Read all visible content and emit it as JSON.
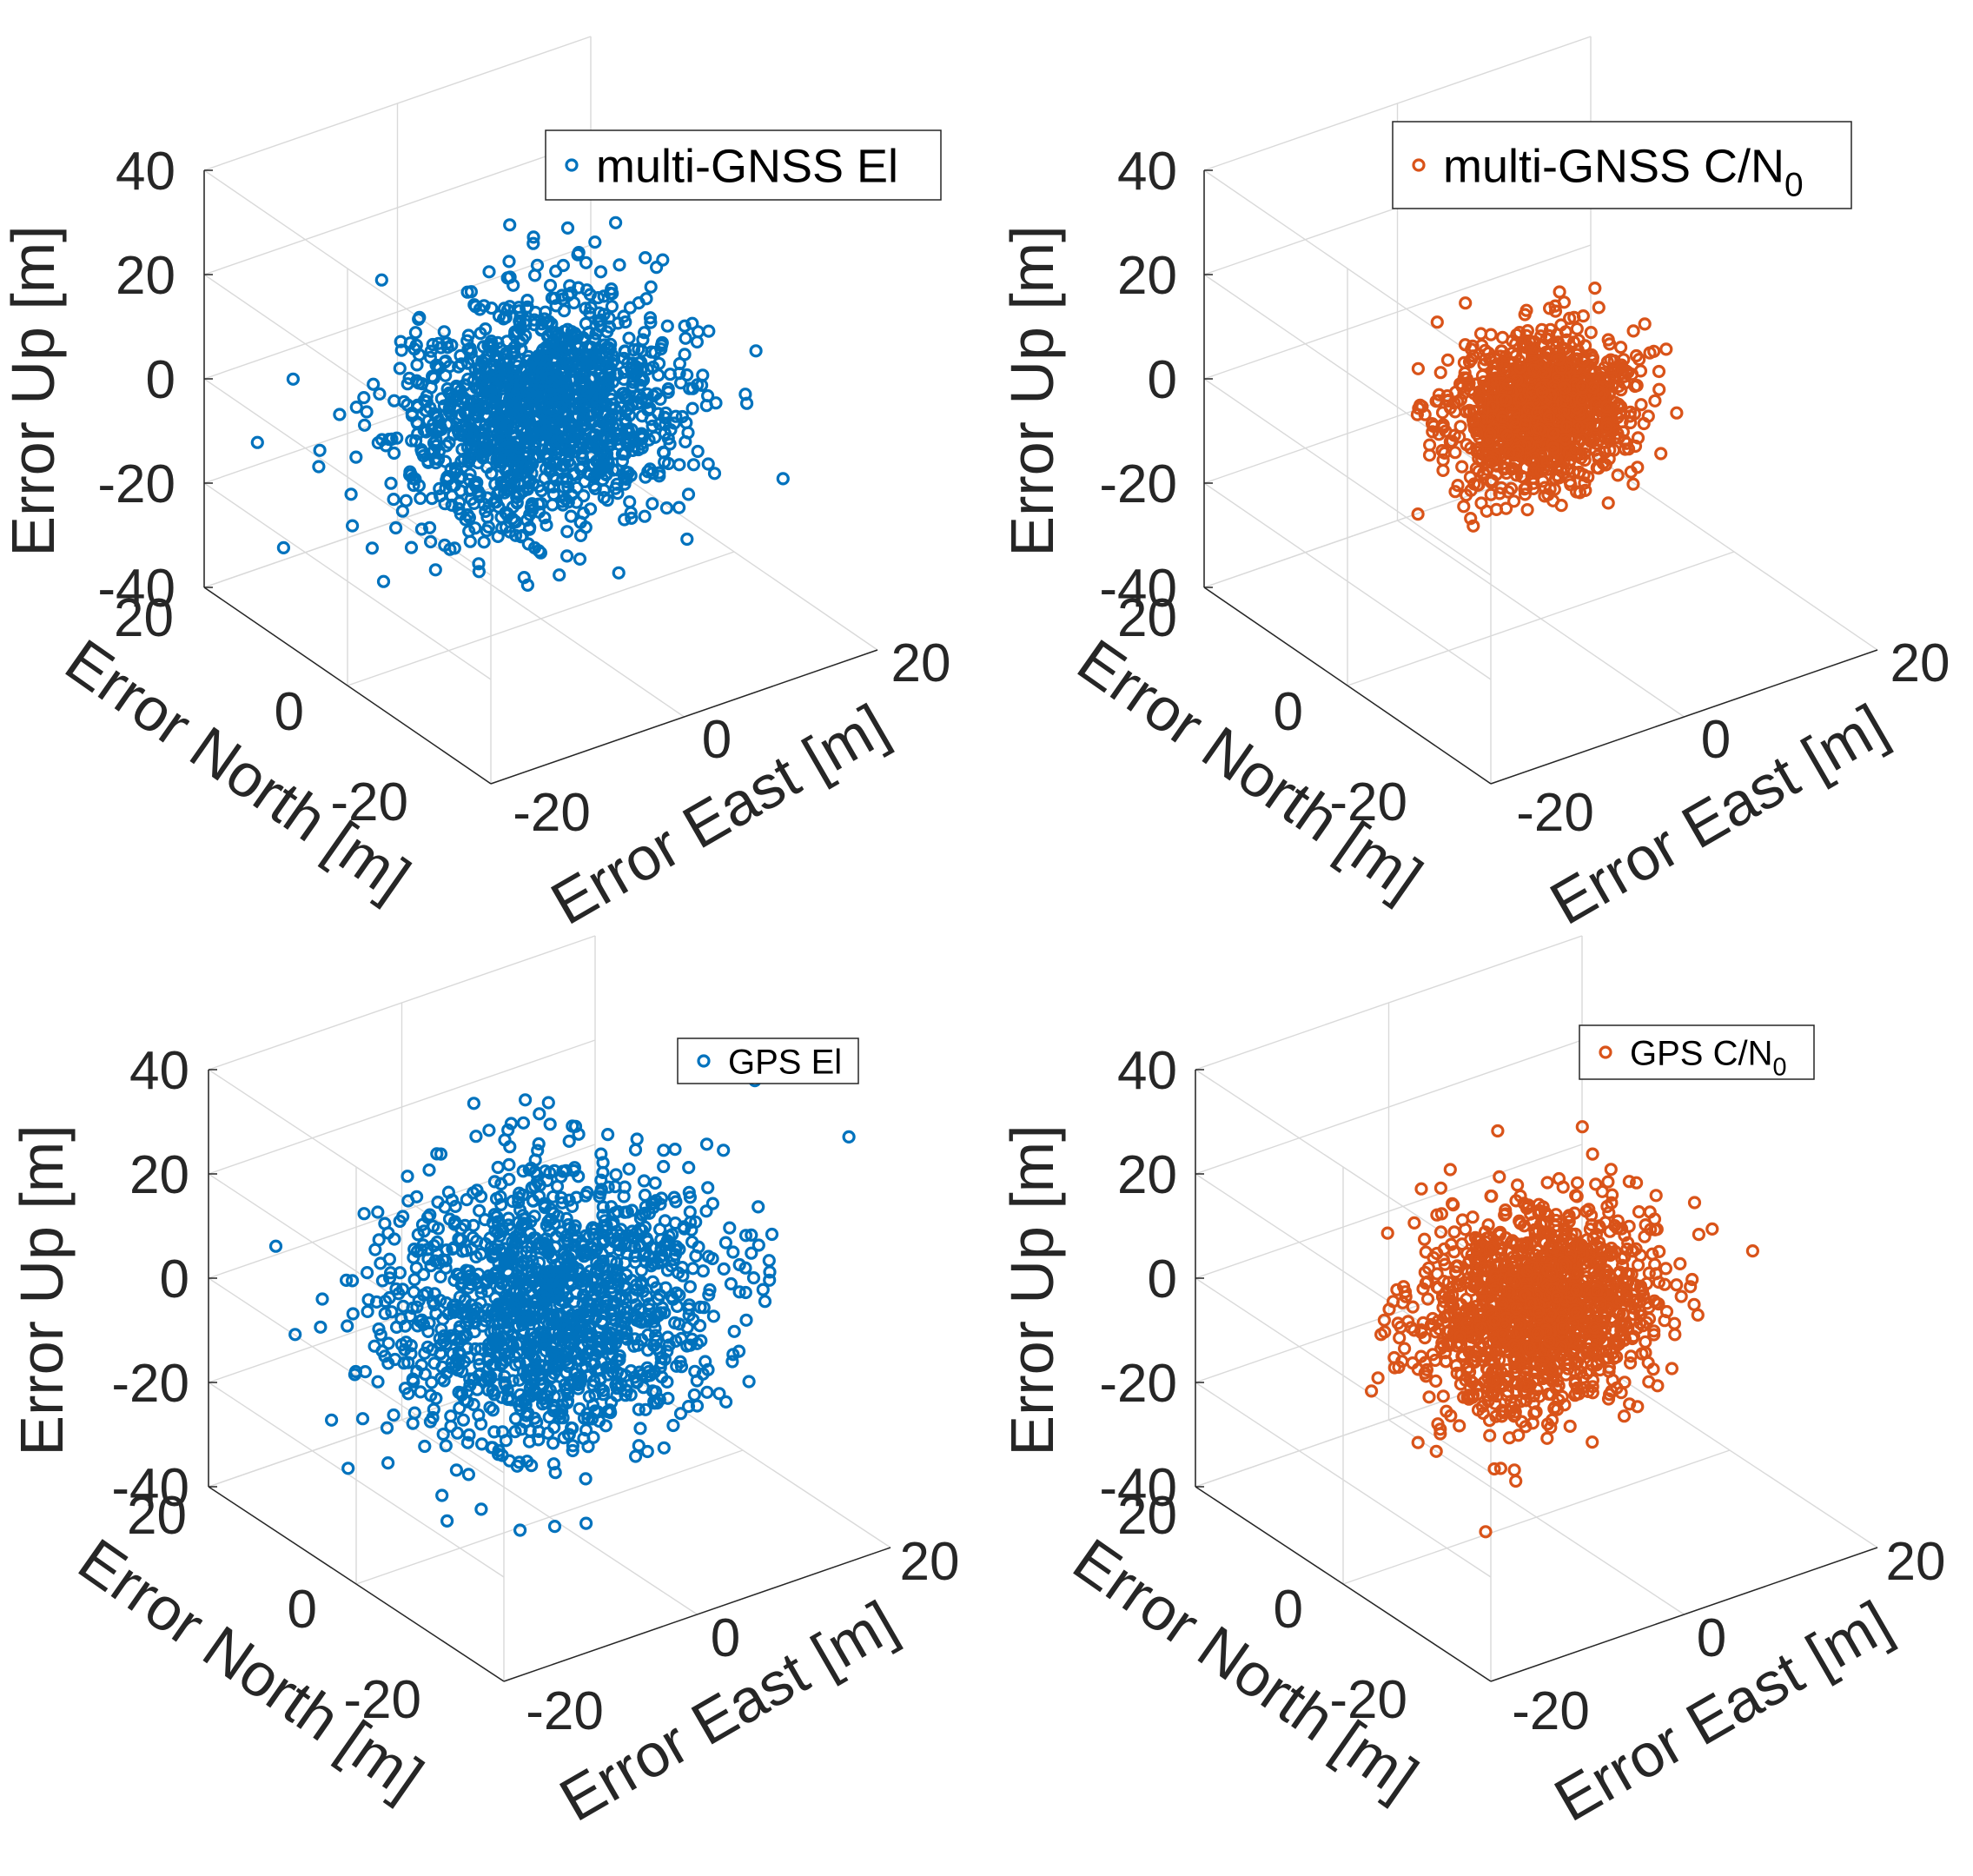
{
  "chart_data": [
    {
      "type": "scatter",
      "dimensions": 3,
      "marker": "circle-open",
      "xlabel": "Error East [m]",
      "ylabel": "Error North [m]",
      "zlabel": "Error Up [m]",
      "xlim": [
        -20,
        20
      ],
      "ylim": [
        -20,
        20
      ],
      "zlim": [
        -40,
        40
      ],
      "xticks": [
        -20,
        0,
        20
      ],
      "yticks": [
        -20,
        0,
        20
      ],
      "zticks": [
        -40,
        -20,
        0,
        20,
        40
      ],
      "xtick_labels": [
        "-20",
        "0",
        "20"
      ],
      "ytick_labels": [
        "-20",
        "0",
        "20"
      ],
      "ztick_labels": [
        "-40",
        "-20",
        "0",
        "20",
        "40"
      ],
      "grid": true,
      "legend": {
        "position": "top-right",
        "entries": [
          {
            "text": "multi-GNSS El",
            "sub": ""
          }
        ]
      },
      "series": [
        {
          "name": "multi-GNSS El",
          "color": "#0072BD",
          "spread": {
            "east_std": 6.5,
            "north_std": 4.5,
            "up_std": 10.0
          },
          "point_count": 1400
        }
      ]
    },
    {
      "type": "scatter",
      "dimensions": 3,
      "marker": "circle-open",
      "xlabel": "Error East [m]",
      "ylabel": "Error North [m]",
      "zlabel": "Error Up [m]",
      "xlim": [
        -20,
        20
      ],
      "ylim": [
        -20,
        20
      ],
      "zlim": [
        -40,
        40
      ],
      "xticks": [
        -20,
        0,
        20
      ],
      "yticks": [
        -20,
        0,
        20
      ],
      "zticks": [
        -40,
        -20,
        0,
        20,
        40
      ],
      "xtick_labels": [
        "-20",
        "0",
        "20"
      ],
      "ytick_labels": [
        "-20",
        "0",
        "20"
      ],
      "ztick_labels": [
        "-40",
        "-20",
        "0",
        "20",
        "40"
      ],
      "grid": true,
      "legend": {
        "position": "top-right",
        "entries": [
          {
            "text": "multi-GNSS C/N",
            "sub": "0"
          }
        ]
      },
      "series": [
        {
          "name": "multi-GNSS C/N0",
          "color": "#D95319",
          "spread": {
            "east_std": 4.0,
            "north_std": 3.0,
            "up_std": 6.5
          },
          "point_count": 1200
        }
      ]
    },
    {
      "type": "scatter",
      "dimensions": 3,
      "marker": "circle-open",
      "xlabel": "Error East [m]",
      "ylabel": "Error North [m]",
      "zlabel": "Error Up [m]",
      "xlim": [
        -20,
        20
      ],
      "ylim": [
        -20,
        20
      ],
      "zlim": [
        -40,
        40
      ],
      "xticks": [
        -20,
        0,
        20
      ],
      "yticks": [
        -20,
        0,
        20
      ],
      "zticks": [
        -40,
        -20,
        0,
        20,
        40
      ],
      "xtick_labels": [
        "-20",
        "0",
        "20"
      ],
      "ytick_labels": [
        "-20",
        "0",
        "20"
      ],
      "ztick_labels": [
        "-40",
        "-20",
        "0",
        "20",
        "40"
      ],
      "grid": true,
      "legend": {
        "position": "top-right",
        "entries": [
          {
            "text": "GPS El",
            "sub": ""
          }
        ]
      },
      "series": [
        {
          "name": "GPS El",
          "color": "#0072BD",
          "spread": {
            "east_std": 7.5,
            "north_std": 5.5,
            "up_std": 12.0
          },
          "point_count": 1400
        }
      ]
    },
    {
      "type": "scatter",
      "dimensions": 3,
      "marker": "circle-open",
      "xlabel": "Error East [m]",
      "ylabel": "Error North [m]",
      "zlabel": "Error Up [m]",
      "xlim": [
        -20,
        20
      ],
      "ylim": [
        -20,
        20
      ],
      "zlim": [
        -40,
        40
      ],
      "xticks": [
        -20,
        0,
        20
      ],
      "yticks": [
        -20,
        0,
        20
      ],
      "zticks": [
        -40,
        -20,
        0,
        20,
        40
      ],
      "xtick_labels": [
        "-20",
        "0",
        "20"
      ],
      "ytick_labels": [
        "-20",
        "0",
        "20"
      ],
      "ztick_labels": [
        "-40",
        "-20",
        "0",
        "20",
        "40"
      ],
      "grid": true,
      "legend": {
        "position": "top-right",
        "entries": [
          {
            "text": "GPS C/N",
            "sub": "0"
          }
        ]
      },
      "series": [
        {
          "name": "GPS C/N0",
          "color": "#D95319",
          "spread": {
            "east_std": 5.5,
            "north_std": 4.0,
            "up_std": 9.0
          },
          "point_count": 1400
        }
      ]
    }
  ]
}
